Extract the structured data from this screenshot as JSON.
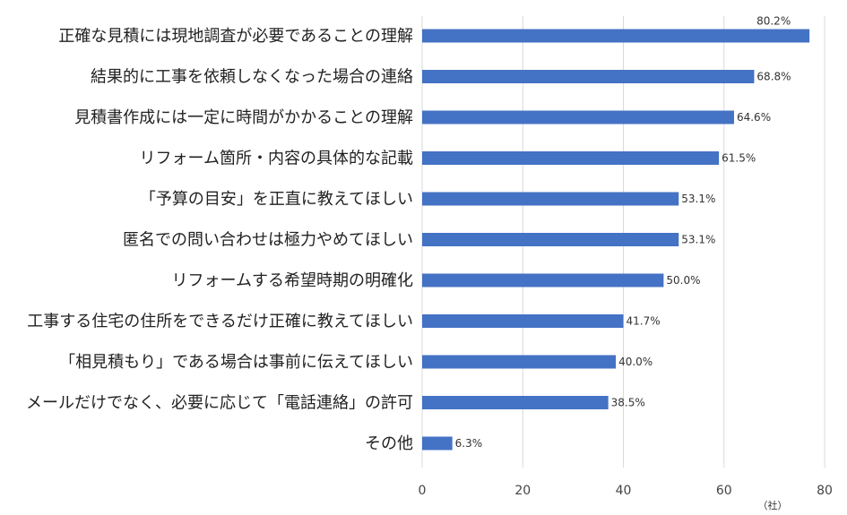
{
  "chart_data": {
    "type": "bar",
    "orientation": "horizontal",
    "categories": [
      "正確な見積には現地調査が必要であることの理解",
      "結果的に工事を依頼しなくなった場合の連絡",
      "見積書作成には一定に時間がかかることの理解",
      "リフォーム箇所・内容の具体的な記載",
      "「予算の目安」を正直に教えてほしい",
      "匿名での問い合わせは極力やめてほしい",
      "リフォームする希望時期の明確化",
      "工事する住宅の住所をできるだけ正確に教えてほしい",
      "「相見積もり」である場合は事前に伝えてほしい",
      "メールだけでなく、必要に応じて「電話連絡」の許可",
      "その他"
    ],
    "values": [
      77,
      66,
      62,
      59,
      51,
      51,
      48,
      40,
      38.5,
      37,
      6
    ],
    "data_labels": [
      "80.2%",
      "68.8%",
      "64.6%",
      "61.5%",
      "53.1%",
      "53.1%",
      "50.0%",
      "41.7%",
      "40.0%",
      "38.5%",
      "6.3%"
    ],
    "xlim": [
      0,
      80
    ],
    "xticks": [
      "0",
      "20",
      "40",
      "60",
      "80"
    ],
    "x_unit": "（社）",
    "grid": "vertical",
    "bar_color": "#4472C4"
  }
}
